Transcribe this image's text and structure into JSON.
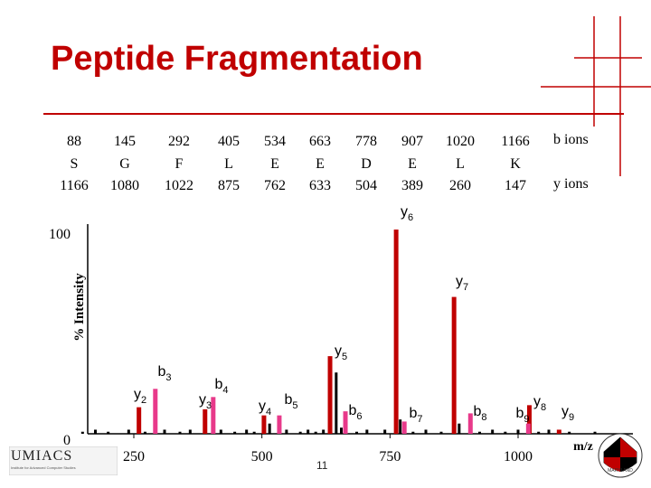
{
  "title": "Peptide Fragmentation",
  "colors": {
    "title": "#c00000",
    "y_ion": "#c00000",
    "b_ion": "#e8398a",
    "noise": "#000000",
    "decor": "#c00000"
  },
  "sequence": [
    {
      "b": "88",
      "aa": "S",
      "y": "1166"
    },
    {
      "b": "145",
      "aa": "G",
      "y": "1080"
    },
    {
      "b": "292",
      "aa": "F",
      "y": "1022"
    },
    {
      "b": "405",
      "aa": "L",
      "y": "875"
    },
    {
      "b": "534",
      "aa": "E",
      "y": "762"
    },
    {
      "b": "663",
      "aa": "E",
      "y": "633"
    },
    {
      "b": "778",
      "aa": "D",
      "y": "504"
    },
    {
      "b": "907",
      "aa": "E",
      "y": "389"
    },
    {
      "b": "1020",
      "aa": "L",
      "y": "260"
    },
    {
      "b": "1166",
      "aa": "K",
      "y": "147"
    }
  ],
  "ion_labels": {
    "b": "b ions",
    "y": "y ions"
  },
  "page_number": "11",
  "logo": {
    "text": "UMIACS",
    "subtext": "Institute for Advanced Computer Studies",
    "seal": "MARYLAND"
  },
  "chart_data": {
    "type": "bar",
    "ylabel": "% Intensity",
    "xlabel": "m/z",
    "xlim": [
      130,
      1180
    ],
    "ylim": [
      0,
      100
    ],
    "x_ticks": [
      "250",
      "500",
      "750",
      "1000"
    ],
    "y_ticks": [
      "0",
      "100"
    ],
    "peaks": [
      {
        "ion": "y",
        "label": "y",
        "sub": "2",
        "mz": 260,
        "intensity": 13
      },
      {
        "ion": "b",
        "label": "b",
        "sub": "3",
        "mz": 292,
        "intensity": 22
      },
      {
        "ion": "y",
        "label": "y",
        "sub": "3",
        "mz": 389,
        "intensity": 12
      },
      {
        "ion": "b",
        "label": "b",
        "sub": "4",
        "mz": 405,
        "intensity": 18
      },
      {
        "ion": "y",
        "label": "y",
        "sub": "4",
        "mz": 504,
        "intensity": 9
      },
      {
        "ion": "b",
        "label": "b",
        "sub": "5",
        "mz": 534,
        "intensity": 9
      },
      {
        "ion": "y",
        "label": "y",
        "sub": "5",
        "mz": 633,
        "intensity": 38
      },
      {
        "ion": "b",
        "label": "b",
        "sub": "6",
        "mz": 663,
        "intensity": 11
      },
      {
        "ion": "y",
        "label": "y",
        "sub": "6",
        "mz": 762,
        "intensity": 100
      },
      {
        "ion": "b",
        "label": "b",
        "sub": "7",
        "mz": 778,
        "intensity": 6
      },
      {
        "ion": "y",
        "label": "y",
        "sub": "7",
        "mz": 875,
        "intensity": 67
      },
      {
        "ion": "b",
        "label": "b",
        "sub": "8",
        "mz": 907,
        "intensity": 10
      },
      {
        "ion": "y",
        "label": "y",
        "sub": "8",
        "mz": 1022,
        "intensity": 14
      },
      {
        "ion": "b",
        "label": "b",
        "sub": "9",
        "mz": 1020,
        "intensity": 5
      },
      {
        "ion": "y",
        "label": "y",
        "sub": "9",
        "mz": 1080,
        "intensity": 2
      }
    ],
    "noise_peaks": [
      {
        "mz": 150,
        "intensity": 1
      },
      {
        "mz": 175,
        "intensity": 2
      },
      {
        "mz": 200,
        "intensity": 1
      },
      {
        "mz": 240,
        "intensity": 2
      },
      {
        "mz": 272,
        "intensity": 1
      },
      {
        "mz": 310,
        "intensity": 2
      },
      {
        "mz": 340,
        "intensity": 1
      },
      {
        "mz": 360,
        "intensity": 2
      },
      {
        "mz": 420,
        "intensity": 2
      },
      {
        "mz": 447,
        "intensity": 1
      },
      {
        "mz": 470,
        "intensity": 2
      },
      {
        "mz": 485,
        "intensity": 1
      },
      {
        "mz": 515,
        "intensity": 5
      },
      {
        "mz": 548,
        "intensity": 2
      },
      {
        "mz": 575,
        "intensity": 1
      },
      {
        "mz": 590,
        "intensity": 2
      },
      {
        "mz": 605,
        "intensity": 1
      },
      {
        "mz": 620,
        "intensity": 2
      },
      {
        "mz": 645,
        "intensity": 30
      },
      {
        "mz": 655,
        "intensity": 3
      },
      {
        "mz": 685,
        "intensity": 1
      },
      {
        "mz": 705,
        "intensity": 2
      },
      {
        "mz": 740,
        "intensity": 2
      },
      {
        "mz": 770,
        "intensity": 7
      },
      {
        "mz": 795,
        "intensity": 1
      },
      {
        "mz": 820,
        "intensity": 2
      },
      {
        "mz": 850,
        "intensity": 1
      },
      {
        "mz": 885,
        "intensity": 5
      },
      {
        "mz": 925,
        "intensity": 1
      },
      {
        "mz": 950,
        "intensity": 2
      },
      {
        "mz": 975,
        "intensity": 1
      },
      {
        "mz": 1000,
        "intensity": 2
      },
      {
        "mz": 1040,
        "intensity": 1
      },
      {
        "mz": 1060,
        "intensity": 2
      },
      {
        "mz": 1100,
        "intensity": 1
      },
      {
        "mz": 1150,
        "intensity": 1
      }
    ]
  }
}
